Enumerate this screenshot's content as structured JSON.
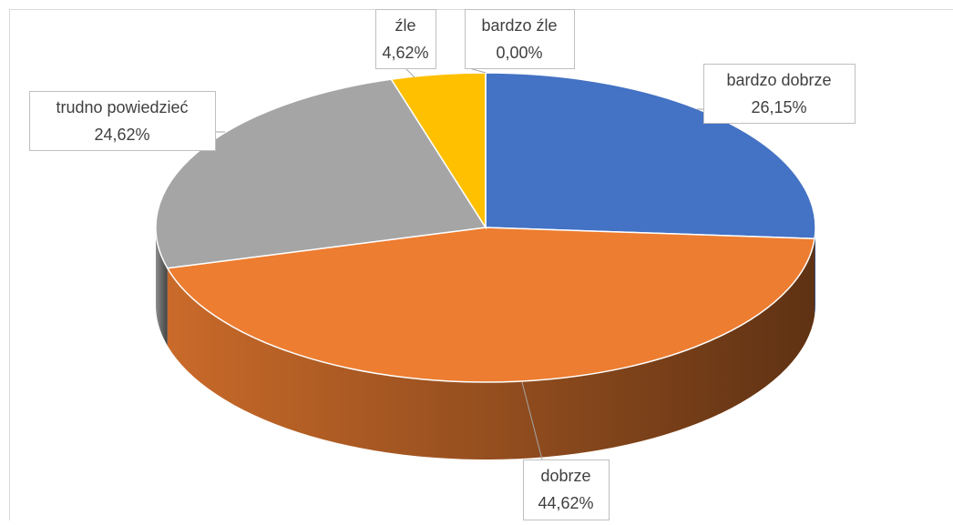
{
  "chart_data": {
    "type": "pie3d",
    "categories": [
      "bardzo dobrze",
      "dobrze",
      "trudno powiedzieć",
      "źle",
      "bardzo źle"
    ],
    "values": [
      26.15,
      44.62,
      24.62,
      4.62,
      0.0
    ],
    "value_labels": [
      "26,15%",
      "44,62%",
      "24,62%",
      "4,62%",
      "0,00%"
    ],
    "colors": [
      "#4472c4",
      "#ed7d31",
      "#a5a5a5",
      "#ffc000",
      "#5b9bd5"
    ]
  }
}
